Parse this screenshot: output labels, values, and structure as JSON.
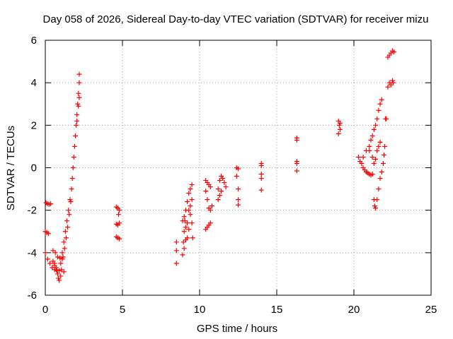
{
  "chart_data": {
    "type": "scatter",
    "title": "Day 058 of 2026, Sidereal Day-to-day VTEC variation (SDTVAR) for receiver mizu",
    "xlabel": "GPS time / hours",
    "ylabel": "SDTVAR / TECUs",
    "xlim": [
      0,
      25
    ],
    "ylim": [
      -6,
      6
    ],
    "xticks": [
      0,
      5,
      10,
      15,
      20,
      25
    ],
    "yticks": [
      -6,
      -4,
      -2,
      0,
      2,
      4,
      6
    ],
    "grid": true,
    "marker": "+",
    "color": "#ff0000",
    "series": [
      {
        "name": "SDTVAR",
        "points": [
          [
            0.05,
            -1.65
          ],
          [
            0.15,
            -1.7
          ],
          [
            0.25,
            -1.72
          ],
          [
            0.35,
            -1.7
          ],
          [
            0.0,
            -3.0
          ],
          [
            0.1,
            -3.05
          ],
          [
            0.2,
            -3.1
          ],
          [
            0.0,
            -4.0
          ],
          [
            0.15,
            -4.3
          ],
          [
            0.3,
            -4.5
          ],
          [
            0.45,
            -4.7
          ],
          [
            0.6,
            -4.8
          ],
          [
            0.75,
            -4.85
          ],
          [
            0.9,
            -4.85
          ],
          [
            1.05,
            -4.8
          ],
          [
            1.2,
            -4.9
          ],
          [
            0.5,
            -3.9
          ],
          [
            0.65,
            -4.0
          ],
          [
            0.8,
            -4.2
          ],
          [
            0.95,
            -4.25
          ],
          [
            1.1,
            -4.3
          ],
          [
            0.6,
            -4.5
          ],
          [
            0.7,
            -4.7
          ],
          [
            0.8,
            -5.0
          ],
          [
            0.85,
            -5.2
          ],
          [
            0.9,
            -5.3
          ],
          [
            1.0,
            -5.1
          ],
          [
            0.5,
            -4.4
          ],
          [
            0.6,
            -4.6
          ],
          [
            0.7,
            -4.8
          ],
          [
            1.0,
            -4.5
          ],
          [
            1.1,
            -4.0
          ],
          [
            1.2,
            -3.5
          ],
          [
            1.3,
            -3.0
          ],
          [
            1.4,
            -2.5
          ],
          [
            1.5,
            -2.0
          ],
          [
            1.6,
            -1.5
          ],
          [
            1.7,
            -1.0
          ],
          [
            1.8,
            0.0
          ],
          [
            1.9,
            1.0
          ],
          [
            2.0,
            2.0
          ],
          [
            2.05,
            2.5
          ],
          [
            2.1,
            3.0
          ],
          [
            2.15,
            3.5
          ],
          [
            2.2,
            4.0
          ],
          [
            2.2,
            4.4
          ],
          [
            1.15,
            -4.2
          ],
          [
            1.25,
            -3.8
          ],
          [
            1.35,
            -3.3
          ],
          [
            1.45,
            -2.8
          ],
          [
            1.55,
            -2.2
          ],
          [
            1.65,
            -1.6
          ],
          [
            1.75,
            -0.5
          ],
          [
            1.85,
            0.5
          ],
          [
            1.95,
            1.5
          ],
          [
            2.05,
            2.2
          ],
          [
            2.15,
            2.9
          ],
          [
            2.2,
            3.3
          ],
          [
            4.6,
            -1.85
          ],
          [
            4.7,
            -1.9
          ],
          [
            4.8,
            -2.0
          ],
          [
            4.75,
            -2.2
          ],
          [
            4.6,
            -2.65
          ],
          [
            4.7,
            -2.7
          ],
          [
            4.8,
            -2.6
          ],
          [
            4.6,
            -3.25
          ],
          [
            4.7,
            -3.3
          ],
          [
            4.8,
            -3.35
          ],
          [
            8.5,
            -3.5
          ],
          [
            8.5,
            -3.9
          ],
          [
            8.5,
            -4.5
          ],
          [
            8.9,
            -4.1
          ],
          [
            8.95,
            -3.5
          ],
          [
            9.0,
            -3.0
          ],
          [
            9.05,
            -2.5
          ],
          [
            9.1,
            -2.0
          ],
          [
            9.2,
            -1.6
          ],
          [
            9.3,
            -1.2
          ],
          [
            9.4,
            -1.0
          ],
          [
            9.5,
            -0.8
          ],
          [
            8.9,
            -2.5
          ],
          [
            9.0,
            -2.3
          ],
          [
            9.1,
            -2.8
          ],
          [
            9.2,
            -3.3
          ],
          [
            9.3,
            -2.9
          ],
          [
            9.4,
            -2.2
          ],
          [
            9.5,
            -1.5
          ],
          [
            9.0,
            -3.8
          ],
          [
            9.1,
            -3.4
          ],
          [
            9.2,
            -2.6
          ],
          [
            9.3,
            -2.0
          ],
          [
            9.4,
            -1.8
          ],
          [
            9.5,
            -2.6
          ],
          [
            9.55,
            -3.3
          ],
          [
            10.4,
            -0.6
          ],
          [
            10.5,
            -0.7
          ],
          [
            10.6,
            -0.8
          ],
          [
            10.7,
            -0.9
          ],
          [
            10.4,
            -1.1
          ],
          [
            10.5,
            -1.5
          ],
          [
            10.6,
            -1.9
          ],
          [
            10.7,
            -2.0
          ],
          [
            10.8,
            -1.8
          ],
          [
            10.4,
            -2.9
          ],
          [
            10.5,
            -2.8
          ],
          [
            10.6,
            -2.7
          ],
          [
            10.7,
            -2.6
          ],
          [
            11.2,
            -1.0
          ],
          [
            11.3,
            -0.6
          ],
          [
            11.4,
            -0.4
          ],
          [
            11.5,
            -0.5
          ],
          [
            11.6,
            -0.7
          ],
          [
            11.7,
            -0.9
          ],
          [
            11.2,
            -1.5
          ],
          [
            11.3,
            -1.3
          ],
          [
            11.4,
            -1.1
          ],
          [
            12.4,
            0.0
          ],
          [
            12.5,
            -0.05
          ],
          [
            12.4,
            -0.4
          ],
          [
            12.5,
            -1.0
          ],
          [
            12.5,
            -1.5
          ],
          [
            12.5,
            -1.75
          ],
          [
            14.0,
            0.2
          ],
          [
            14.0,
            0.1
          ],
          [
            14.0,
            -0.3
          ],
          [
            14.0,
            -0.5
          ],
          [
            14.0,
            -1.05
          ],
          [
            16.3,
            1.4
          ],
          [
            16.3,
            1.3
          ],
          [
            16.3,
            0.3
          ],
          [
            16.3,
            0.2
          ],
          [
            16.3,
            -0.15
          ],
          [
            19.0,
            2.2
          ],
          [
            19.05,
            2.0
          ],
          [
            19.1,
            1.8
          ],
          [
            19.0,
            1.6
          ],
          [
            19.1,
            2.1
          ],
          [
            20.3,
            0.5
          ],
          [
            20.4,
            0.3
          ],
          [
            20.5,
            0.2
          ],
          [
            20.6,
            0.0
          ],
          [
            20.7,
            -0.1
          ],
          [
            20.8,
            -0.2
          ],
          [
            20.9,
            -0.25
          ],
          [
            21.0,
            -0.3
          ],
          [
            21.1,
            -0.35
          ],
          [
            21.2,
            -0.3
          ],
          [
            20.6,
            0.5
          ],
          [
            20.8,
            0.8
          ],
          [
            21.0,
            1.0
          ],
          [
            21.1,
            1.3
          ],
          [
            21.2,
            1.5
          ],
          [
            21.3,
            1.8
          ],
          [
            21.4,
            2.0
          ],
          [
            21.5,
            2.3
          ],
          [
            21.6,
            2.7
          ],
          [
            21.7,
            3.0
          ],
          [
            21.8,
            3.2
          ],
          [
            21.0,
            0.8
          ],
          [
            21.2,
            0.5
          ],
          [
            21.3,
            0.2
          ],
          [
            21.4,
            0.4
          ],
          [
            21.5,
            0.8
          ],
          [
            21.6,
            1.0
          ],
          [
            21.7,
            1.2
          ],
          [
            21.3,
            -1.5
          ],
          [
            21.35,
            -1.8
          ],
          [
            21.4,
            -1.9
          ],
          [
            21.5,
            -1.5
          ],
          [
            21.6,
            -1.0
          ],
          [
            21.7,
            -0.5
          ],
          [
            21.8,
            -0.2
          ],
          [
            21.9,
            0.2
          ],
          [
            21.95,
            0.6
          ],
          [
            22.0,
            1.0
          ],
          [
            22.05,
            2.3
          ],
          [
            22.1,
            2.3
          ],
          [
            22.2,
            3.8
          ],
          [
            22.3,
            4.0
          ],
          [
            22.4,
            3.9
          ],
          [
            22.5,
            4.1
          ],
          [
            22.55,
            4.0
          ],
          [
            22.2,
            5.2
          ],
          [
            22.3,
            5.3
          ],
          [
            22.4,
            5.4
          ],
          [
            22.5,
            5.5
          ],
          [
            22.6,
            5.45
          ]
        ]
      }
    ]
  }
}
